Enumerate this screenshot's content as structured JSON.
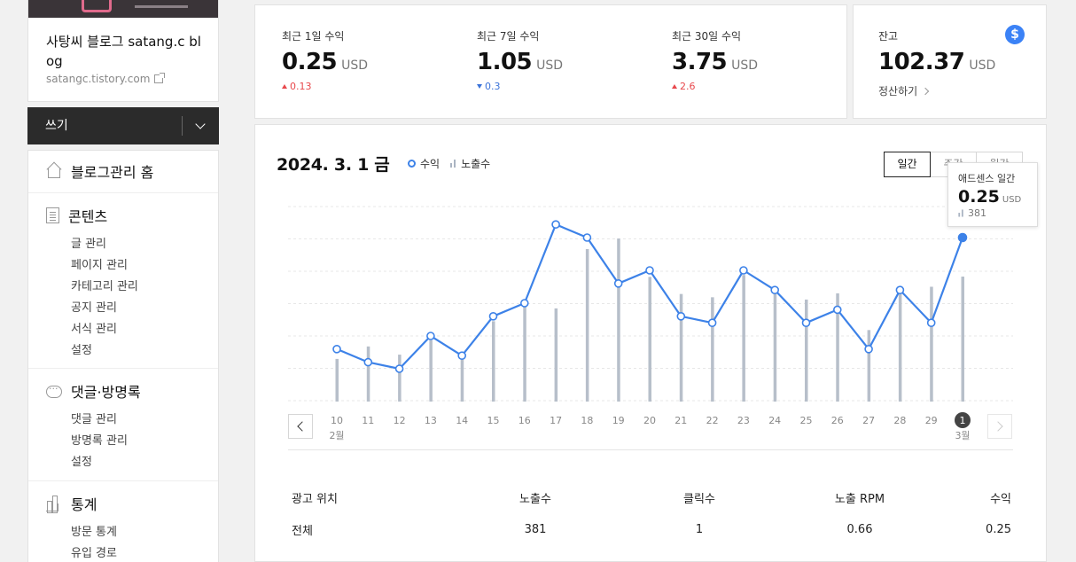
{
  "blog": {
    "title": "사탕씨 블로그 satang.c blog",
    "url": "satangc.tistory.com"
  },
  "write": {
    "label": "쓰기"
  },
  "menu": {
    "home": "블로그관리 홈",
    "content": {
      "title": "콘텐츠",
      "items": [
        "글 관리",
        "페이지 관리",
        "카테고리 관리",
        "공지 관리",
        "서식 관리",
        "설정"
      ]
    },
    "comments": {
      "title": "댓글·방명록",
      "items": [
        "댓글 관리",
        "방명록 관리",
        "설정"
      ]
    },
    "stats": {
      "title": "통계",
      "items": [
        "방문 통계",
        "유입 경로"
      ]
    }
  },
  "summary": {
    "metrics": [
      {
        "label": "최근 1일 수익",
        "value": "0.25",
        "unit": "USD",
        "delta": "0.13",
        "direction": "up"
      },
      {
        "label": "최근 7일 수익",
        "value": "1.05",
        "unit": "USD",
        "delta": "0.3",
        "direction": "down"
      },
      {
        "label": "최근 30일 수익",
        "value": "3.75",
        "unit": "USD",
        "delta": "2.6",
        "direction": "up"
      }
    ],
    "balance": {
      "label": "잔고",
      "value": "102.37",
      "unit": "USD",
      "link": "정산하기"
    }
  },
  "chart": {
    "date": "2024. 3. 1 금",
    "legend": {
      "revenue": "수익",
      "views": "노출수"
    },
    "tabs": [
      "일간",
      "주간",
      "월간"
    ],
    "active_tab": "일간",
    "tooltip": {
      "title": "애드센스 일간",
      "value": "0.25",
      "unit": "USD",
      "views": "381"
    }
  },
  "chart_data": {
    "type": "line",
    "categories": [
      "10",
      "11",
      "12",
      "13",
      "14",
      "15",
      "16",
      "17",
      "18",
      "19",
      "20",
      "21",
      "22",
      "23",
      "24",
      "25",
      "26",
      "27",
      "28",
      "29",
      "1"
    ],
    "month_labels": {
      "0": "2월",
      "20": "3월"
    },
    "series": [
      {
        "name": "수익",
        "type": "line",
        "color": "#3d82e8",
        "values": [
          0.08,
          0.06,
          0.05,
          0.1,
          0.07,
          0.13,
          0.15,
          0.27,
          0.25,
          0.18,
          0.2,
          0.13,
          0.12,
          0.2,
          0.17,
          0.12,
          0.14,
          0.08,
          0.17,
          0.12,
          0.25
        ]
      },
      {
        "name": "노출수",
        "type": "bar",
        "color": "#b7bfca",
        "values": [
          130,
          168,
          143,
          187,
          142,
          245,
          290,
          284,
          465,
          497,
          380,
          328,
          318,
          386,
          343,
          311,
          330,
          218,
          343,
          350,
          381
        ]
      }
    ],
    "selected_index": 20
  },
  "table": {
    "headers": [
      "광고 위치",
      "노출수",
      "클릭수",
      "노출 RPM",
      "수익"
    ],
    "rows": [
      [
        "전체",
        "381",
        "1",
        "0.66",
        "0.25"
      ]
    ]
  }
}
